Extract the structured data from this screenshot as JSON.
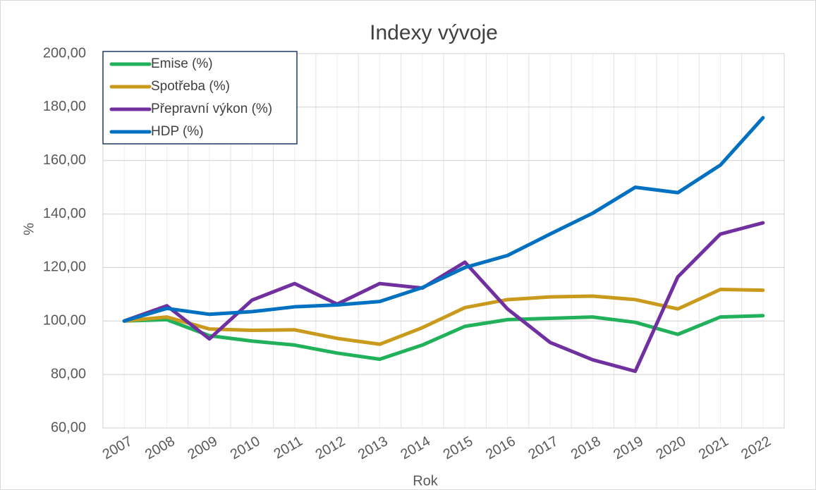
{
  "chart_data": {
    "type": "line",
    "title": "Indexy vývoje",
    "x_label": "Rok",
    "y_label": "%",
    "categories": [
      "2007",
      "2008",
      "2009",
      "2010",
      "2011",
      "2012",
      "2013",
      "2014",
      "2015",
      "2016",
      "2017",
      "2018",
      "2019",
      "2020",
      "2021",
      "2022"
    ],
    "series": [
      {
        "name": "Emise (%)",
        "color": "#20b15a",
        "values": [
          100,
          100.5,
          94.5,
          92.5,
          91,
          88,
          85.7,
          91,
          98,
          100.5,
          101,
          101.5,
          99.5,
          95,
          101.5,
          102
        ]
      },
      {
        "name": "Spotřeba (%)",
        "color": "#c99a1c",
        "values": [
          100,
          101.5,
          97,
          96.5,
          96.7,
          93.5,
          91.3,
          97.5,
          105,
          108,
          109,
          109.3,
          108,
          104.5,
          111.8,
          111.5
        ]
      },
      {
        "name": "Přepravní výkon (%)",
        "color": "#7030a0",
        "values": [
          100,
          105.7,
          93.3,
          107.8,
          114,
          106.3,
          114,
          112.3,
          122,
          104.5,
          92,
          85.5,
          81.2,
          116.5,
          132.5,
          136.7
        ]
      },
      {
        "name": "HDP (%)",
        "color": "#0070c0",
        "values": [
          100,
          104.7,
          102.5,
          103.5,
          105.3,
          106,
          107.3,
          112.5,
          120,
          124.5,
          132.5,
          140.3,
          150,
          148,
          158.3,
          176
        ]
      }
    ],
    "ylim": [
      60,
      200
    ],
    "yticks": [
      {
        "value": 60,
        "label": "60,00"
      },
      {
        "value": 80,
        "label": "80,00"
      },
      {
        "value": 100,
        "label": "100,00"
      },
      {
        "value": 120,
        "label": "120,00"
      },
      {
        "value": 140,
        "label": "140,00"
      },
      {
        "value": 160,
        "label": "160,00"
      },
      {
        "value": 180,
        "label": "180,00"
      },
      {
        "value": 200,
        "label": "200,00"
      }
    ],
    "grid": true,
    "legend": "top-left"
  }
}
